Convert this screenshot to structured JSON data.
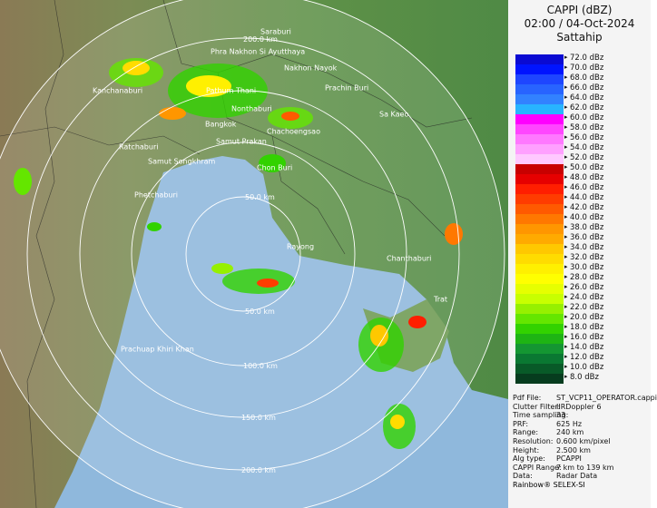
{
  "header": {
    "title": "CAPPI (dBZ)",
    "datetime": "02:00 / 04-Oct-2024",
    "site": "Sattahip"
  },
  "legend": [
    {
      "label": "72.0 dBz",
      "color": "#0a0ad2"
    },
    {
      "label": "70.0 dBz",
      "color": "#0014ff"
    },
    {
      "label": "68.0 dBz",
      "color": "#1e46ff"
    },
    {
      "label": "66.0 dBz",
      "color": "#2864ff"
    },
    {
      "label": "64.0 dBz",
      "color": "#3282ff"
    },
    {
      "label": "62.0 dBz",
      "color": "#28b4ff"
    },
    {
      "label": "60.0 dBz",
      "color": "#ff00ff"
    },
    {
      "label": "58.0 dBz",
      "color": "#ff46ff"
    },
    {
      "label": "56.0 dBz",
      "color": "#ff78ff"
    },
    {
      "label": "54.0 dBz",
      "color": "#ffa0ff"
    },
    {
      "label": "52.0 dBz",
      "color": "#ffc8ff"
    },
    {
      "label": "50.0 dBz",
      "color": "#c80000"
    },
    {
      "label": "48.0 dBz",
      "color": "#e60000"
    },
    {
      "label": "46.0 dBz",
      "color": "#ff1e00"
    },
    {
      "label": "44.0 dBz",
      "color": "#ff3c00"
    },
    {
      "label": "42.0 dBz",
      "color": "#ff5a00"
    },
    {
      "label": "40.0 dBz",
      "color": "#ff7800"
    },
    {
      "label": "38.0 dBz",
      "color": "#ff9600"
    },
    {
      "label": "36.0 dBz",
      "color": "#ffaa00"
    },
    {
      "label": "34.0 dBz",
      "color": "#ffc800"
    },
    {
      "label": "32.0 dBz",
      "color": "#ffdc00"
    },
    {
      "label": "30.0 dBz",
      "color": "#fff000"
    },
    {
      "label": "28.0 dBz",
      "color": "#ffff00"
    },
    {
      "label": "26.0 dBz",
      "color": "#e6ff00"
    },
    {
      "label": "24.0 dBz",
      "color": "#c8ff00"
    },
    {
      "label": "22.0 dBz",
      "color": "#96f000"
    },
    {
      "label": "20.0 dBz",
      "color": "#64e600"
    },
    {
      "label": "18.0 dBz",
      "color": "#32d200"
    },
    {
      "label": "16.0 dBz",
      "color": "#1eb414"
    },
    {
      "label": "14.0 dBz",
      "color": "#149632"
    },
    {
      "label": "12.0 dBz",
      "color": "#0a7832"
    },
    {
      "label": "10.0 dBz",
      "color": "#085a28"
    },
    {
      "label": "8.0 dBz",
      "color": "#063c1e"
    }
  ],
  "info": [
    {
      "label": "Pdf File:",
      "value": "ST_VCP11_OPERATOR.cappi"
    },
    {
      "label": "Clutter Filter:",
      "value": "IIRDoppler 6"
    },
    {
      "label": "Time sampling:",
      "value": "33"
    },
    {
      "label": "PRF:",
      "value": "625 Hz"
    },
    {
      "label": "Range:",
      "value": "240 km"
    },
    {
      "label": "Resolution:",
      "value": "0.600 km/pixel"
    },
    {
      "label": "Height:",
      "value": "2.500 km"
    },
    {
      "label": "Alg type:",
      "value": "PCAPPI"
    },
    {
      "label": "CAPPI Range:",
      "value": "7 km to 139 km"
    },
    {
      "label": "Data:",
      "value": "Radar Data"
    }
  ],
  "footer": "Rainbow® SELEX-SI",
  "map": {
    "places": [
      "Saraburi",
      "Phra Nakhon Si Ayutthaya",
      "Nakhon Nayok",
      "Kanchanaburi",
      "Pathum Thani",
      "Prachin Buri",
      "Nonthaburi",
      "Bangkok",
      "Sa Kaeo",
      "Chachoengsao",
      "Ratchaburi",
      "Samut Prakan",
      "Samut Songkhram",
      "Chon Buri",
      "Phetchaburi",
      "Rayong",
      "Chanthaburi",
      "Trat",
      "Prachuap Khiri Khan"
    ],
    "range_labels": [
      "200.0 km",
      "50.0 km",
      "50.0 km",
      "100.0 km",
      "150.0 km",
      "200.0 km"
    ]
  }
}
